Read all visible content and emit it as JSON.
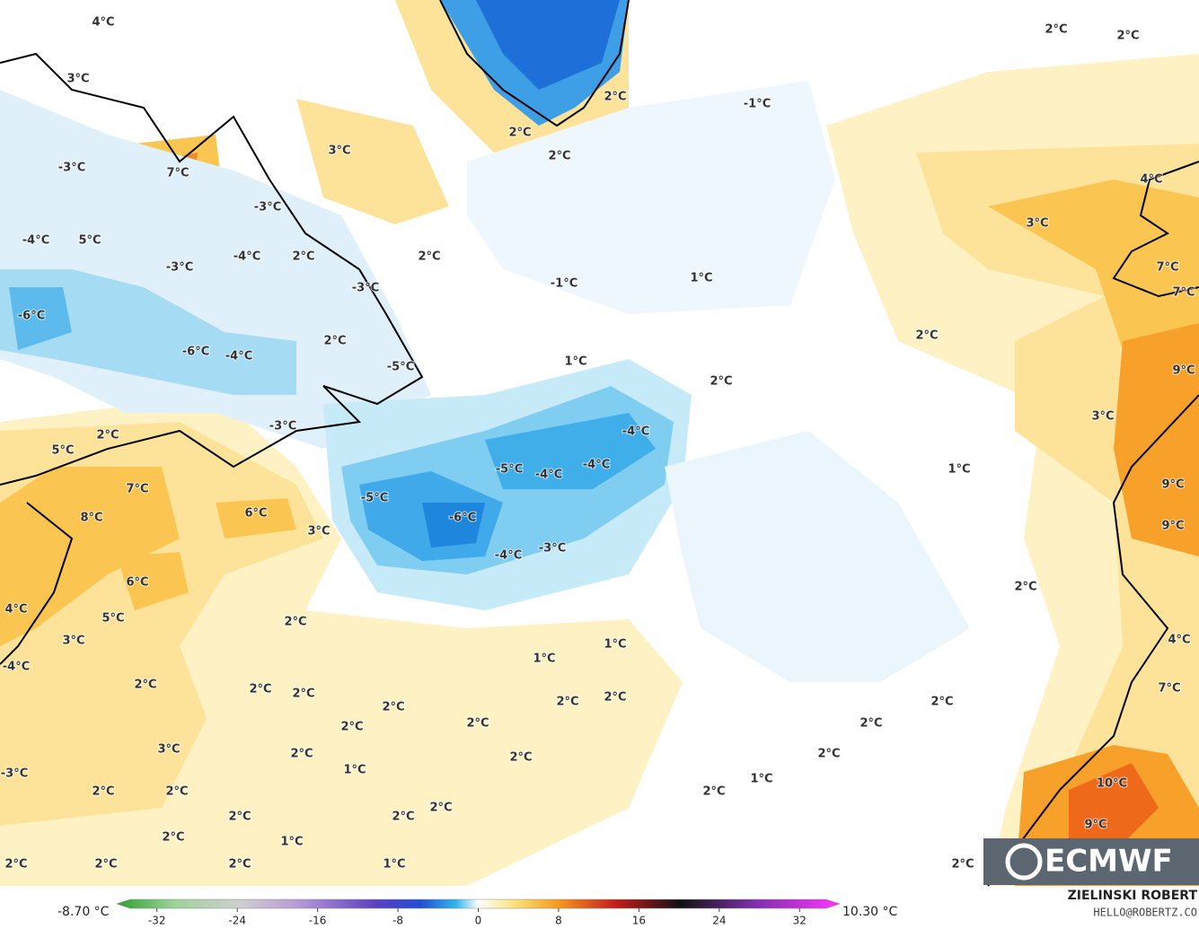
{
  "map": {
    "labels": [
      "4°C",
      "3°C",
      "3°C",
      "-3°C",
      "7°C",
      "-3°C",
      "-4°C",
      "5°C",
      "-4°C",
      "-3°C",
      "2°C",
      "-3°C",
      "-6°C",
      "2°C",
      "-6°C",
      "-4°C",
      "-5°C",
      "-3°C",
      "2°C",
      "5°C",
      "7°C",
      "8°C",
      "6°C",
      "3°C",
      "6°C",
      "5°C",
      "4°C",
      "3°C",
      "-4°C",
      "2°C",
      "2°C",
      "2°C",
      "2°C",
      "2°C",
      "2°C",
      "3°C",
      "2°C",
      "2°C",
      "1°C",
      "2°C",
      "-3°C",
      "2°C",
      "2°C",
      "2°C",
      "2°C",
      "2°C",
      "2°C",
      "1°C",
      "2°C",
      "2°C",
      "2°C",
      "1°C",
      "2°C",
      "2°C",
      "2°C",
      "2°C",
      "-1°C",
      "-1°C",
      "1°C",
      "1°C",
      "2°C",
      "-4°C",
      "-5°C",
      "-4°C",
      "-4°C",
      "-5°C",
      "-6°C",
      "-4°C",
      "-3°C",
      "1°C",
      "1°C",
      "2°C",
      "2°C",
      "2°C",
      "2°C",
      "4°C",
      "3°C",
      "7°C",
      "7°C",
      "2°C",
      "9°C",
      "3°C",
      "1°C",
      "9°C",
      "9°C",
      "2°C",
      "4°C",
      "7°C",
      "2°C",
      "2°C",
      "2°C",
      "1°C",
      "2°C",
      "10°C",
      "9°C",
      "2°C"
    ]
  },
  "logo": "ECMWF",
  "colorbar": {
    "lim": [
      -36,
      36
    ],
    "ticks": [
      -32,
      -24,
      -16,
      -8,
      0,
      8,
      16,
      24,
      32
    ],
    "min_label": "-8.70 °C",
    "max_label": "10.30 °C"
  },
  "credit": {
    "name": "ZIELINSKI ROBERT",
    "contact": "HELLO@ROBERTZ.CO"
  }
}
